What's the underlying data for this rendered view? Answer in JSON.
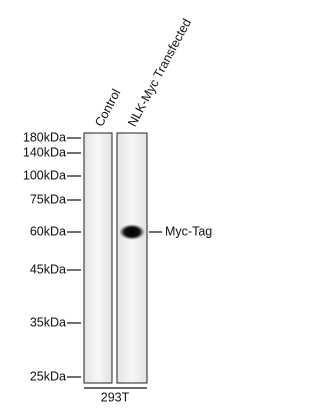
{
  "lanes": [
    "Control",
    "NLK-Myc Transfected"
  ],
  "markers": [
    "180kDa",
    "140kDa",
    "100kDa",
    "75kDa",
    "60kDa",
    "45kDa",
    "35kDa",
    "25kDa"
  ],
  "band_label": "Myc-Tag",
  "cell_line": "293T"
}
